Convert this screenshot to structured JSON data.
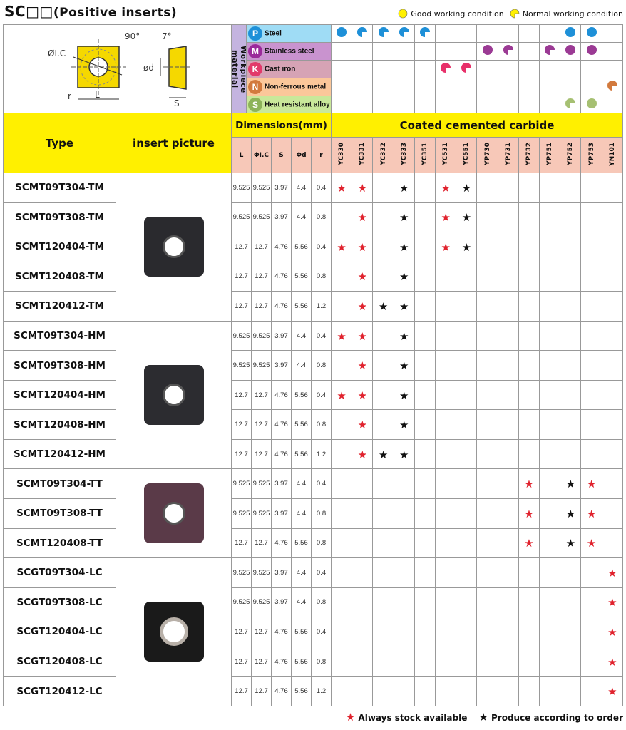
{
  "title": {
    "main": "SC□□",
    "sub": "(Positive inserts)"
  },
  "legend_top": {
    "good": "Good working condition",
    "normal": "Normal working condition"
  },
  "diagram": {
    "ic": "ØI.C",
    "angle1": "90°",
    "angle2": "7°",
    "d": "ød",
    "r": "r",
    "L": "L",
    "S": "S"
  },
  "workpiece_label": "Workpiece material",
  "materials": [
    {
      "code": "P",
      "name": "Steel",
      "color": "#1e90d8",
      "bg": "#9fdcf5",
      "marks": [
        "good",
        "normal",
        "normal",
        "normal",
        "normal",
        null,
        null,
        null,
        null,
        null,
        null,
        "good",
        "good",
        null
      ]
    },
    {
      "code": "M",
      "name": "Stainless steel",
      "color": "#9b2a9b",
      "bg": "#c993cf",
      "marks": [
        null,
        null,
        null,
        null,
        null,
        null,
        null,
        "good",
        "normal",
        null,
        "normal",
        "good",
        "good",
        null
      ]
    },
    {
      "code": "K",
      "name": "Cast iron",
      "color": "#e23a6a",
      "bg": "#d6a3b5",
      "marks": [
        null,
        null,
        null,
        null,
        null,
        "normal",
        "normal",
        null,
        null,
        null,
        null,
        null,
        null,
        null
      ]
    },
    {
      "code": "N",
      "name": "Non-ferrous metal",
      "color": "#d27a3e",
      "bg": "#fbc79a",
      "marks": [
        null,
        null,
        null,
        null,
        null,
        null,
        null,
        null,
        null,
        null,
        null,
        null,
        null,
        "normal"
      ]
    },
    {
      "code": "S",
      "name": "Heat resistant alloy",
      "color": "#8db35a",
      "bg": "#c9e89a",
      "marks": [
        null,
        null,
        null,
        null,
        null,
        null,
        null,
        null,
        null,
        null,
        null,
        "normal",
        "good",
        null
      ]
    }
  ],
  "mark_colors": {
    "P": "#1e90d8",
    "M": "#9b3a94",
    "K": "#e8306a",
    "N": "#d27a3e",
    "S": "#a6c072"
  },
  "header": {
    "type": "Type",
    "picture": "insert picture",
    "dimensions": "Dimensions(mm)",
    "coated": "Coated cemented carbide",
    "dims": [
      "L",
      "ΦI.C",
      "S",
      "Φd",
      "r"
    ]
  },
  "grades": [
    "YC330",
    "YC331",
    "YC332",
    "YC333",
    "YC351",
    "YC531",
    "YC551",
    "YP730",
    "YP731",
    "YP732",
    "YP751",
    "YP752",
    "YP753",
    "YN101"
  ],
  "groups": [
    {
      "insert": "TM",
      "rows": [
        {
          "type": "SCMT09T304-TM",
          "dims": [
            "9.525",
            "9.525",
            "3.97",
            "4.4",
            "0.4"
          ],
          "stars": {
            "YC330": "red",
            "YC331": "red",
            "YC333": "black",
            "YC531": "red",
            "YC551": "black"
          }
        },
        {
          "type": "SCMT09T308-TM",
          "dims": [
            "9.525",
            "9.525",
            "3.97",
            "4.4",
            "0.8"
          ],
          "stars": {
            "YC331": "red",
            "YC333": "black",
            "YC531": "red",
            "YC551": "black"
          }
        },
        {
          "type": "SCMT120404-TM",
          "dims": [
            "12.7",
            "12.7",
            "4.76",
            "5.56",
            "0.4"
          ],
          "stars": {
            "YC330": "red",
            "YC331": "red",
            "YC333": "black",
            "YC531": "red",
            "YC551": "black"
          }
        },
        {
          "type": "SCMT120408-TM",
          "dims": [
            "12.7",
            "12.7",
            "4.76",
            "5.56",
            "0.8"
          ],
          "stars": {
            "YC331": "red",
            "YC333": "black"
          }
        },
        {
          "type": "SCMT120412-TM",
          "dims": [
            "12.7",
            "12.7",
            "4.76",
            "5.56",
            "1.2"
          ],
          "stars": {
            "YC331": "red",
            "YC332": "black",
            "YC333": "black"
          }
        }
      ]
    },
    {
      "insert": "HM",
      "rows": [
        {
          "type": "SCMT09T304-HM",
          "dims": [
            "9.525",
            "9.525",
            "3.97",
            "4.4",
            "0.4"
          ],
          "stars": {
            "YC330": "red",
            "YC331": "red",
            "YC333": "black"
          }
        },
        {
          "type": "SCMT09T308-HM",
          "dims": [
            "9.525",
            "9.525",
            "3.97",
            "4.4",
            "0.8"
          ],
          "stars": {
            "YC331": "red",
            "YC333": "black"
          }
        },
        {
          "type": "SCMT120404-HM",
          "dims": [
            "12.7",
            "12.7",
            "4.76",
            "5.56",
            "0.4"
          ],
          "stars": {
            "YC330": "red",
            "YC331": "red",
            "YC333": "black"
          }
        },
        {
          "type": "SCMT120408-HM",
          "dims": [
            "12.7",
            "12.7",
            "4.76",
            "5.56",
            "0.8"
          ],
          "stars": {
            "YC331": "red",
            "YC333": "black"
          }
        },
        {
          "type": "SCMT120412-HM",
          "dims": [
            "12.7",
            "12.7",
            "4.76",
            "5.56",
            "1.2"
          ],
          "stars": {
            "YC331": "red",
            "YC332": "black",
            "YC333": "black"
          }
        }
      ]
    },
    {
      "insert": "TT",
      "rows": [
        {
          "type": "SCMT09T304-TT",
          "dims": [
            "9.525",
            "9.525",
            "3.97",
            "4.4",
            "0.4"
          ],
          "stars": {
            "YP732": "red",
            "YP752": "black",
            "YP753": "red"
          }
        },
        {
          "type": "SCMT09T308-TT",
          "dims": [
            "9.525",
            "9.525",
            "3.97",
            "4.4",
            "0.8"
          ],
          "stars": {
            "YP732": "red",
            "YP752": "black",
            "YP753": "red"
          }
        },
        {
          "type": "SCMT120408-TT",
          "dims": [
            "12.7",
            "12.7",
            "4.76",
            "5.56",
            "0.8"
          ],
          "stars": {
            "YP732": "red",
            "YP752": "black",
            "YP753": "red"
          }
        }
      ]
    },
    {
      "insert": "LC",
      "rows": [
        {
          "type": "SCGT09T304-LC",
          "dims": [
            "9.525",
            "9.525",
            "3.97",
            "4.4",
            "0.4"
          ],
          "stars": {
            "YN101": "red"
          }
        },
        {
          "type": "SCGT09T308-LC",
          "dims": [
            "9.525",
            "9.525",
            "3.97",
            "4.4",
            "0.8"
          ],
          "stars": {
            "YN101": "red"
          }
        },
        {
          "type": "SCGT120404-LC",
          "dims": [
            "12.7",
            "12.7",
            "4.76",
            "5.56",
            "0.4"
          ],
          "stars": {
            "YN101": "red"
          }
        },
        {
          "type": "SCGT120408-LC",
          "dims": [
            "12.7",
            "12.7",
            "4.76",
            "5.56",
            "0.8"
          ],
          "stars": {
            "YN101": "red"
          }
        },
        {
          "type": "SCGT120412-LC",
          "dims": [
            "12.7",
            "12.7",
            "4.76",
            "5.56",
            "1.2"
          ],
          "stars": {
            "YN101": "red"
          }
        }
      ]
    }
  ],
  "legend_bottom": {
    "stock": "Always stock available",
    "order": "Produce according to order"
  },
  "colors": {
    "yellow": "#fff000",
    "pink": "#f7c8b8",
    "red_star": "#e0222d",
    "black_star": "#111111"
  }
}
